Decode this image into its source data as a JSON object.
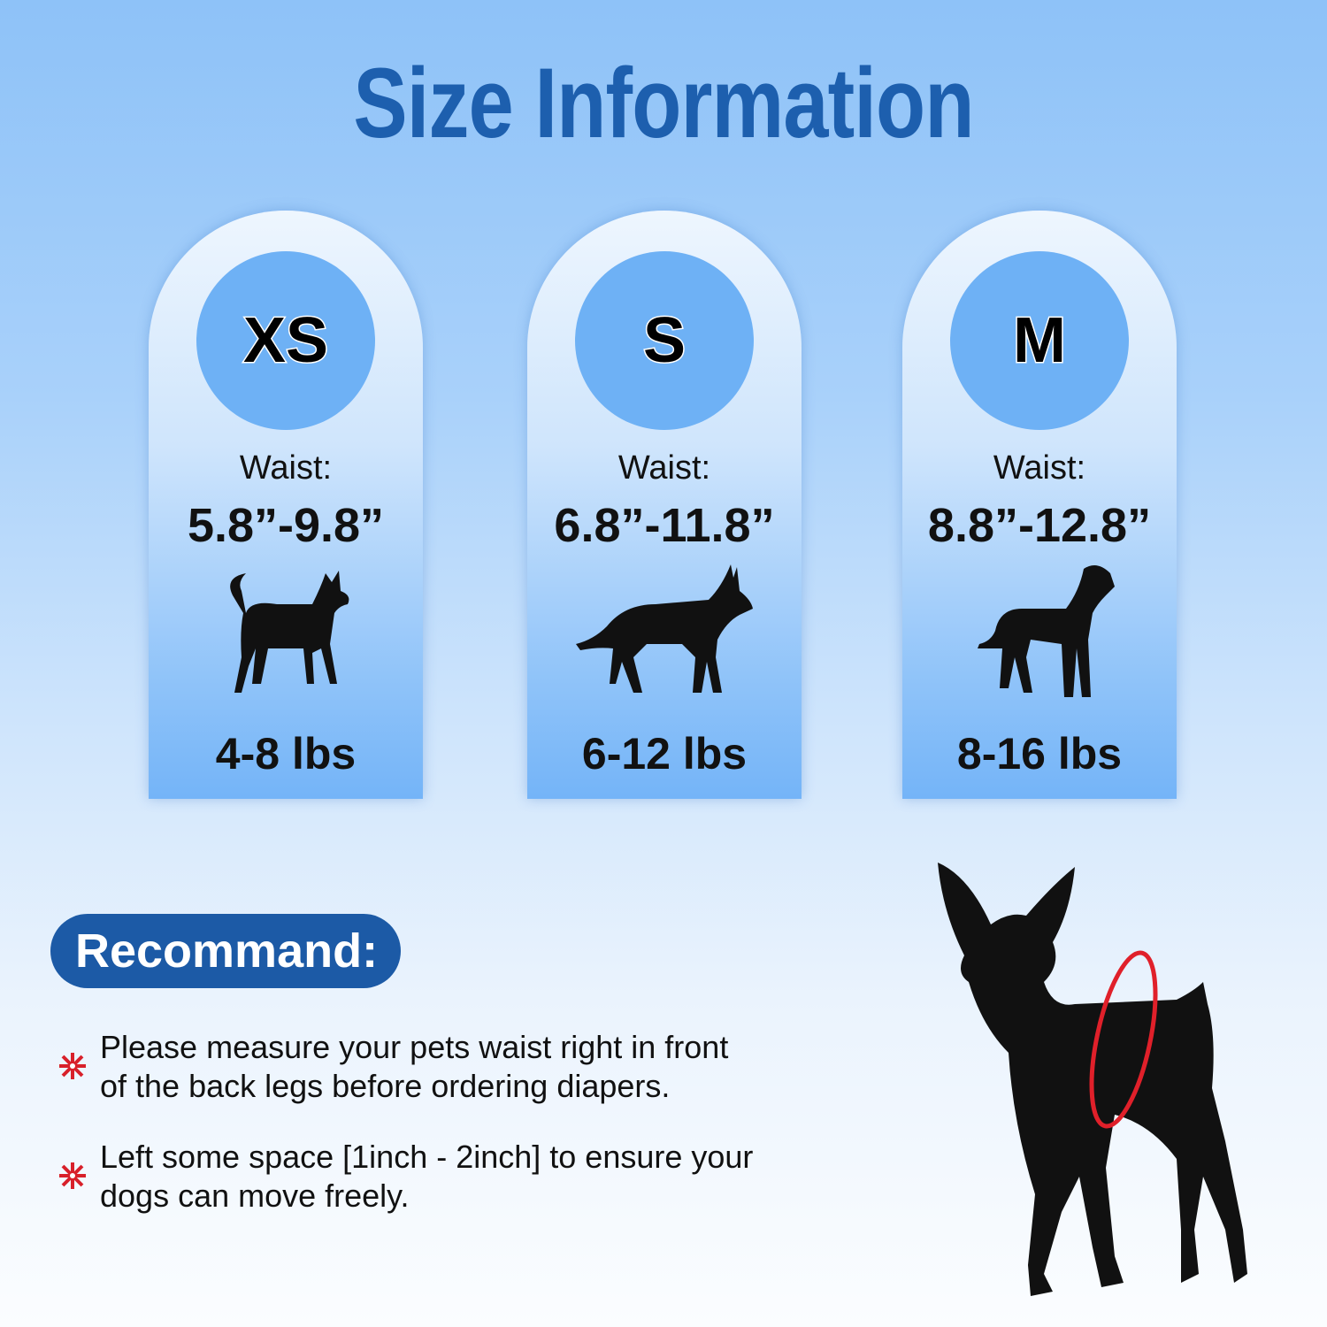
{
  "title": "Size Information",
  "sizes": [
    {
      "size": "XS",
      "waist_label": "Waist:",
      "waist": "5.8”-9.8”",
      "weight": "4-8 lbs",
      "dog_icon": "chihuahua-silhouette"
    },
    {
      "size": "S",
      "waist_label": "Waist:",
      "waist": "6.8”-11.8”",
      "weight": "6-12 lbs",
      "dog_icon": "shepherd-silhouette"
    },
    {
      "size": "M",
      "waist_label": "Waist:",
      "waist": "8.8”-12.8”",
      "weight": "8-16 lbs",
      "dog_icon": "large-dog-silhouette"
    }
  ],
  "recommend": {
    "label": "Recommand:",
    "tips": [
      {
        "line1": "Please measure your pets waist right in front",
        "line2": "of the back legs before ordering diapers."
      },
      {
        "line1": "Left some space [1inch - 2inch] to ensure your",
        "line2": "dogs can move freely."
      }
    ]
  },
  "colors": {
    "title": "#1d5fae",
    "pill": "#1c5aa6",
    "circle": "#6eb1f5",
    "waist_ring": "#e0202a",
    "bullet": "#d8202a"
  }
}
